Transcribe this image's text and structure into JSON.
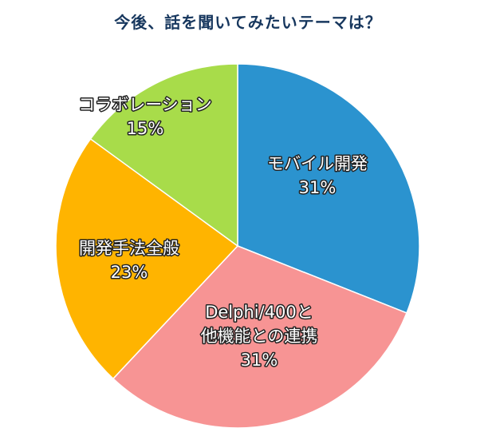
{
  "chart_data": {
    "type": "pie",
    "title": "今後、話を聞いてみたいテーマは？",
    "slices": [
      {
        "label_lines": [
          "モバイル開発"
        ],
        "value": 31,
        "percent_label": "31%",
        "color": "#2b93cf"
      },
      {
        "label_lines": [
          "Delphi/400と",
          "他機能との連携"
        ],
        "value": 31,
        "percent_label": "31%",
        "color": "#f79494"
      },
      {
        "label_lines": [
          "開発手法全般"
        ],
        "value": 23,
        "percent_label": "23%",
        "color": "#ffb400"
      },
      {
        "label_lines": [
          "コラボレーション"
        ],
        "value": 15,
        "percent_label": "15%",
        "color": "#a8dc4a"
      }
    ]
  }
}
